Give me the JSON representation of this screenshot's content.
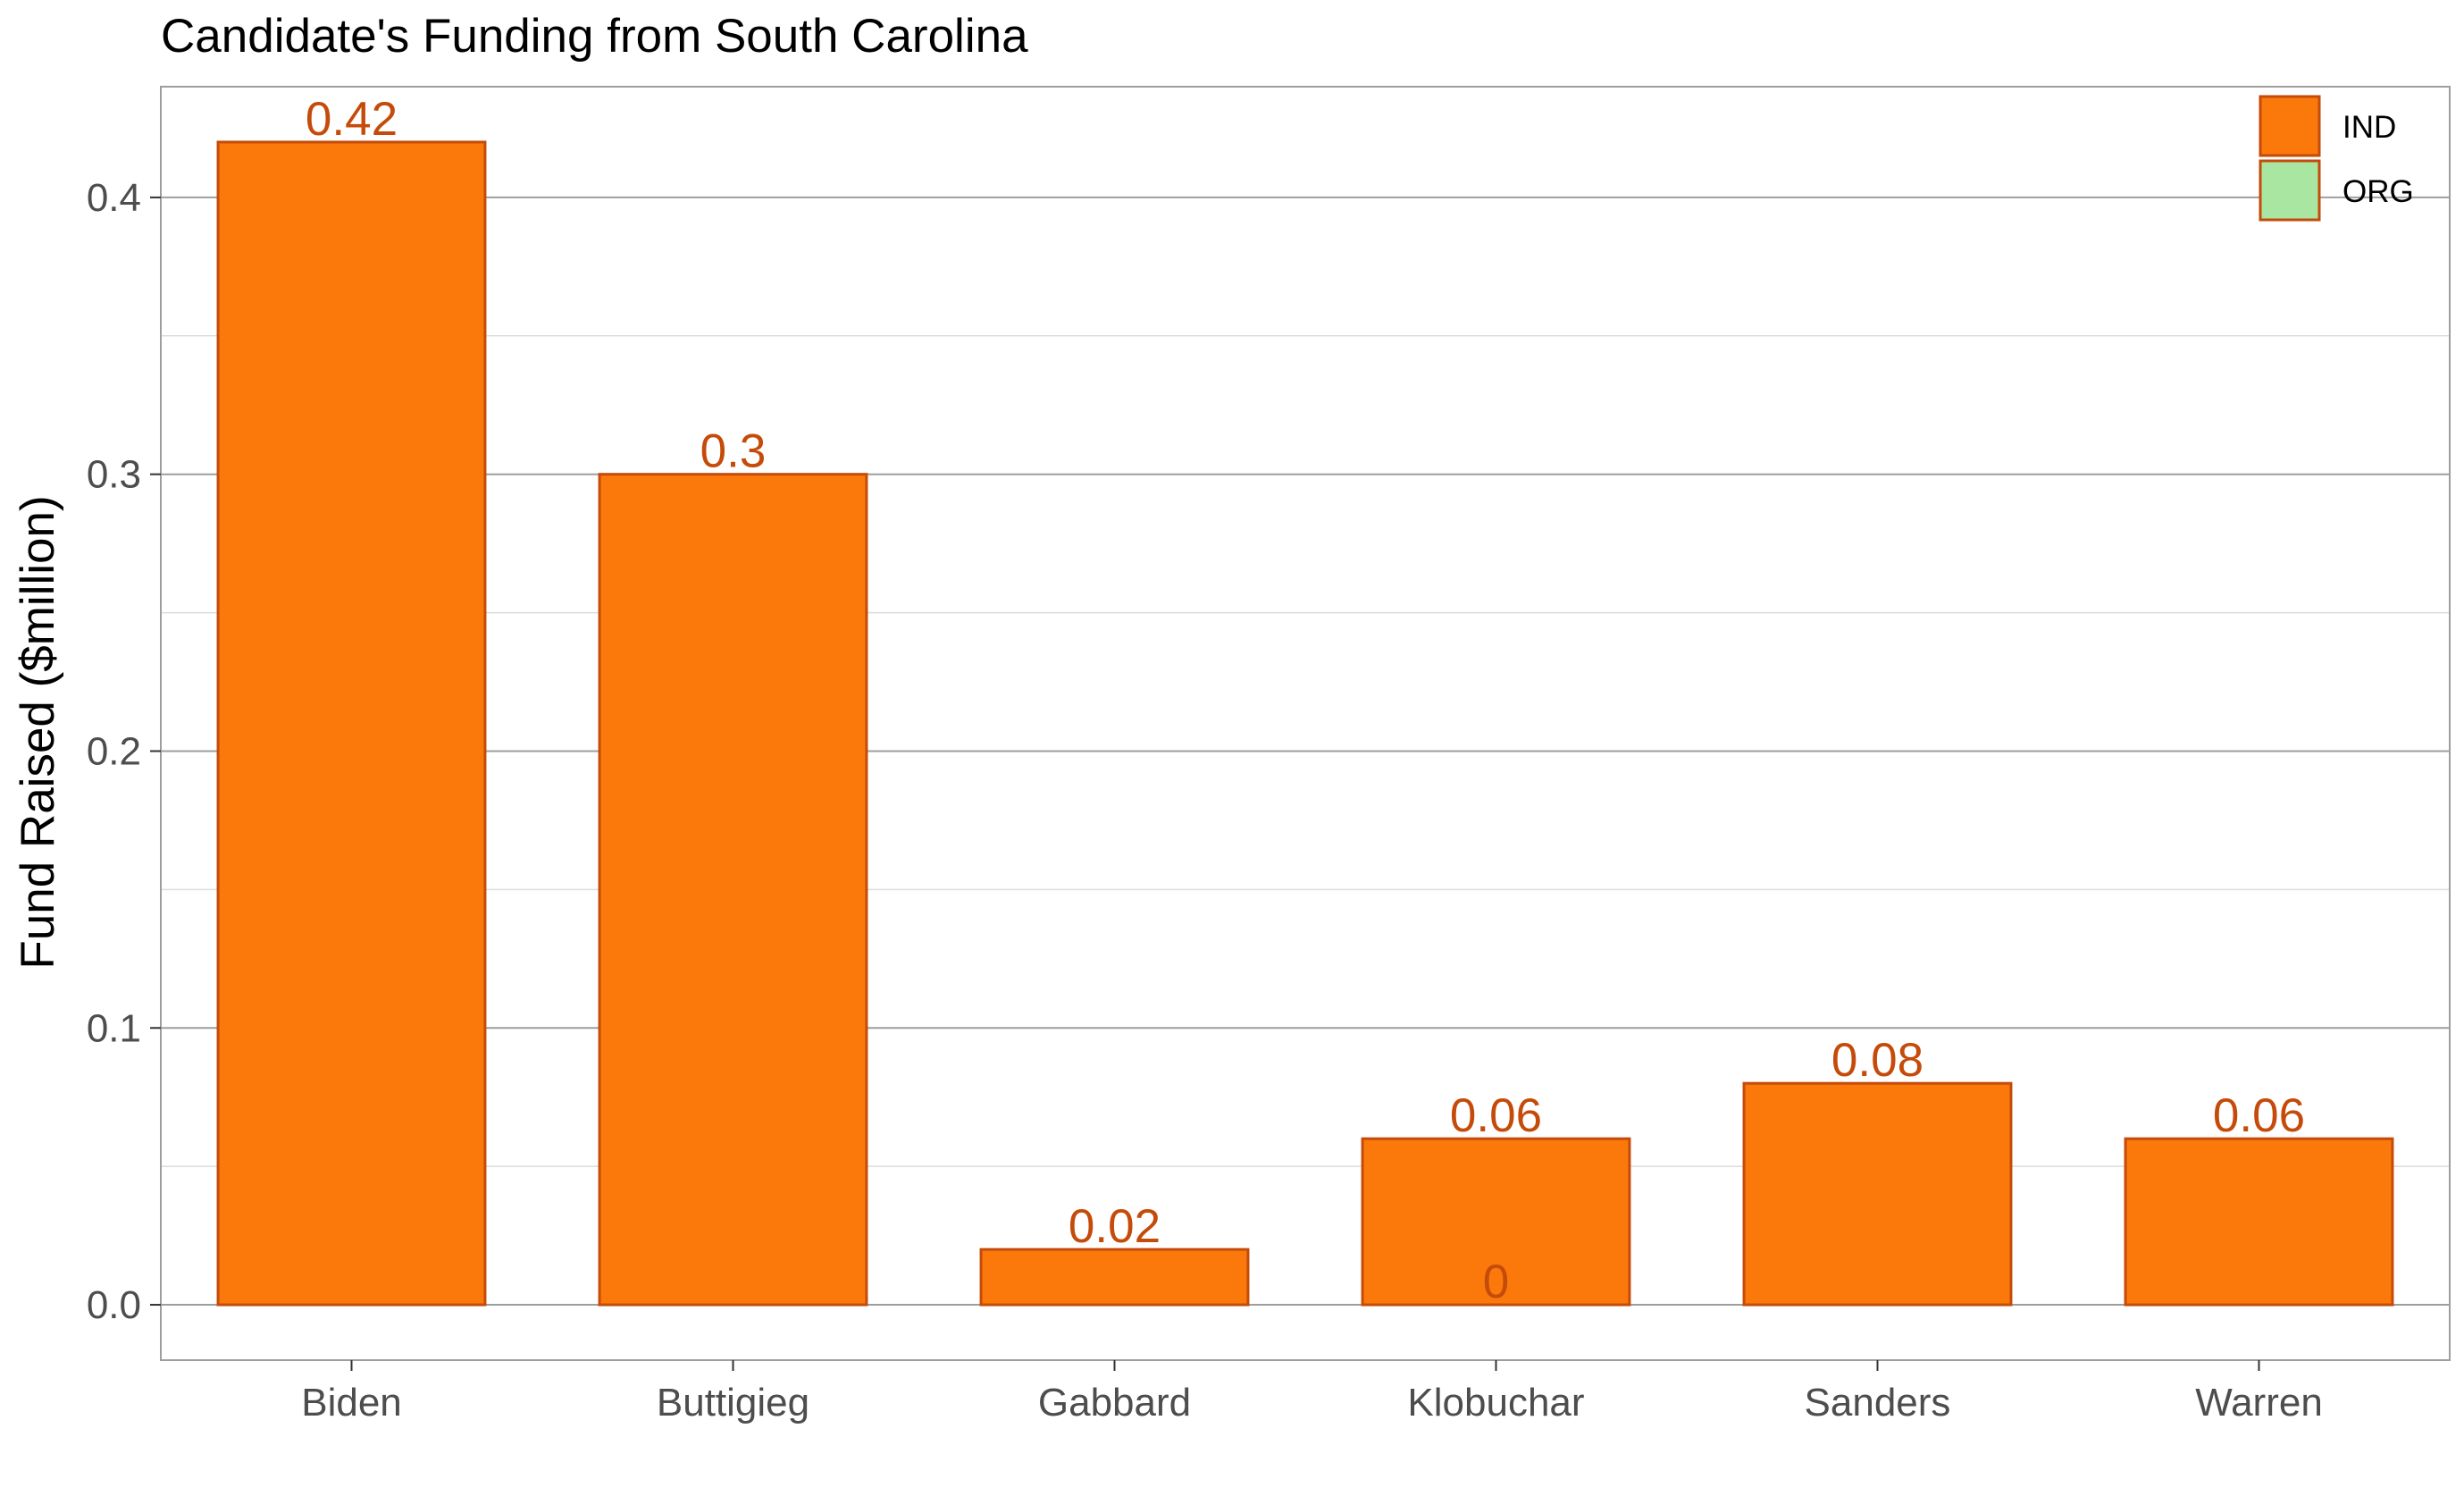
{
  "chart_data": {
    "type": "bar",
    "title": "Candidate's Funding from South Carolina",
    "xlabel": "",
    "ylabel": "Fund Raised ($million)",
    "categories": [
      "Biden",
      "Buttigieg",
      "Gabbard",
      "Klobuchar",
      "Sanders",
      "Warren"
    ],
    "series": [
      {
        "name": "IND",
        "values": [
          0.42,
          0.3,
          0.02,
          0.06,
          0.08,
          0.06
        ],
        "labels": [
          "0.42",
          "0.3",
          "0.02",
          "0.06",
          "0.08",
          "0.06"
        ],
        "color": "#fb790b",
        "border": "#c54b0a"
      },
      {
        "name": "ORG",
        "values": [
          null,
          null,
          null,
          0,
          null,
          null
        ],
        "labels": [
          null,
          null,
          null,
          "0",
          null,
          null
        ],
        "color": "#a8e6a1",
        "border": "#c54b0a"
      }
    ],
    "ylim": [
      -0.02,
      0.44
    ],
    "yticks": [
      0.0,
      0.1,
      0.2,
      0.3,
      0.4
    ],
    "ytick_labels": [
      "0.0",
      "0.1",
      "0.2",
      "0.3",
      "0.4"
    ],
    "grid": true,
    "legend_position": "top-right"
  },
  "colors": {
    "bar_fill": "#fb790b",
    "bar_border": "#c54b0a",
    "label": "#c54b0a",
    "org_fill": "#a8e6a1",
    "grid_major": "#9e9e9e",
    "grid_minor": "#dcdcdc",
    "panel_border": "#9e9e9e",
    "tick_text": "#4d4d4d"
  }
}
